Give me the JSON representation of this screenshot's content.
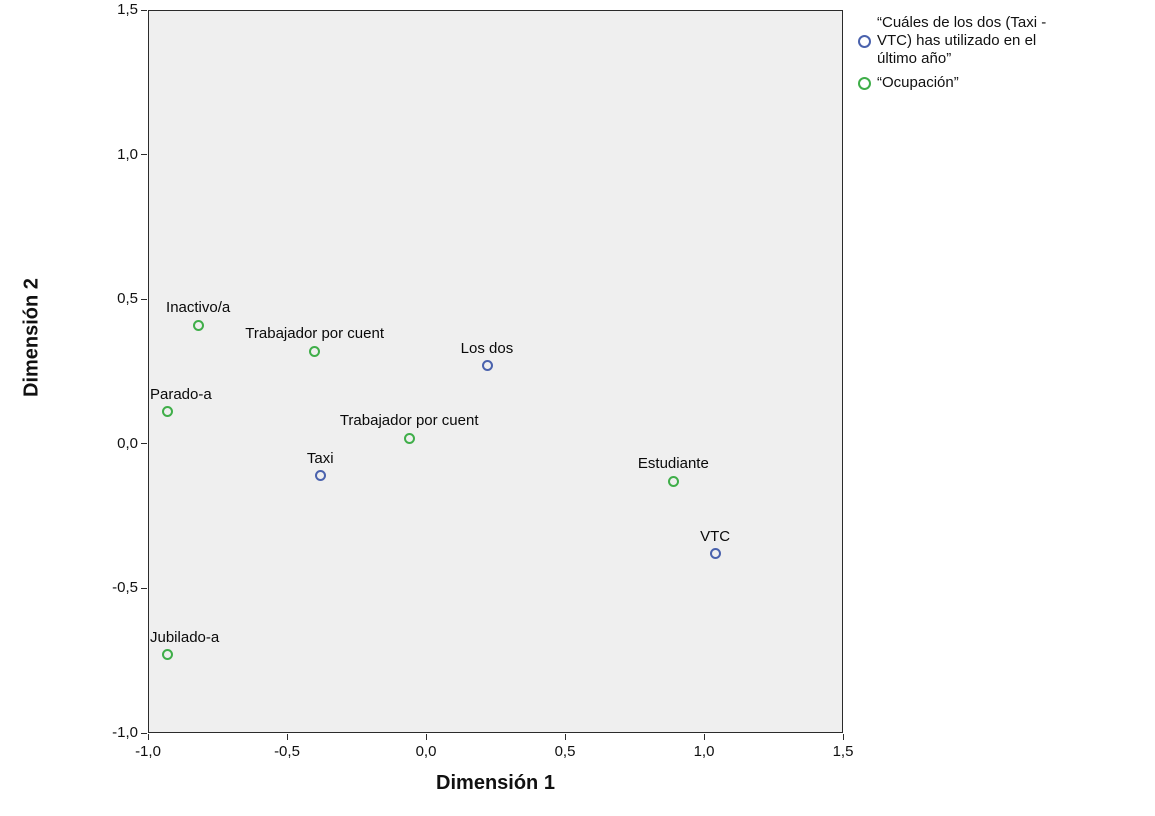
{
  "chart_data": {
    "type": "scatter",
    "title": "",
    "xlabel": "Dimensión 1",
    "ylabel": "Dimensión 2",
    "xlim": [
      -1.0,
      1.5
    ],
    "ylim": [
      -1.0,
      1.5
    ],
    "grid": false,
    "legend_position": "top-right",
    "plot_background": "#efefef",
    "x_ticks": [
      {
        "value": -1.0,
        "label": "-1,0"
      },
      {
        "value": -0.5,
        "label": "-0,5"
      },
      {
        "value": 0.0,
        "label": "0,0"
      },
      {
        "value": 0.5,
        "label": "0,5"
      },
      {
        "value": 1.0,
        "label": "1,0"
      },
      {
        "value": 1.5,
        "label": "1,5"
      }
    ],
    "y_ticks": [
      {
        "value": -1.0,
        "label": "-1,0"
      },
      {
        "value": -0.5,
        "label": "-0,5"
      },
      {
        "value": 0.0,
        "label": "0,0"
      },
      {
        "value": 0.5,
        "label": "0,5"
      },
      {
        "value": 1.0,
        "label": "1,0"
      },
      {
        "value": 1.5,
        "label": "1,5"
      }
    ],
    "series": [
      {
        "name": "Cuáles de los dos (Taxi - VTC) has utilizado en el último año",
        "legend_label": "“Cuáles de los dos (Taxi -\nVTC) has utilizado en el\núltimo año”",
        "color": "#4a62ad"
      },
      {
        "name": "Ocupación",
        "legend_label": "“Ocupación”",
        "color": "#3fae49"
      }
    ],
    "points": [
      {
        "label": "Inactivo/a",
        "series": 1,
        "x": -0.82,
        "y": 0.41
      },
      {
        "label": "Trabajador por cuent",
        "series": 1,
        "x": -0.4,
        "y": 0.32
      },
      {
        "label": "Los dos",
        "series": 0,
        "x": 0.22,
        "y": 0.27
      },
      {
        "label": "Parado-a",
        "series": 1,
        "x": -0.93,
        "y": 0.11
      },
      {
        "label": "Trabajador por cuent",
        "series": 1,
        "x": -0.06,
        "y": 0.02
      },
      {
        "label": "Taxi",
        "series": 0,
        "x": -0.38,
        "y": -0.11
      },
      {
        "label": "Estudiante",
        "series": 1,
        "x": 0.89,
        "y": -0.13
      },
      {
        "label": "VTC",
        "series": 0,
        "x": 1.04,
        "y": -0.38
      },
      {
        "label": "Jubilado-a",
        "series": 1,
        "x": -0.93,
        "y": -0.73
      }
    ]
  }
}
